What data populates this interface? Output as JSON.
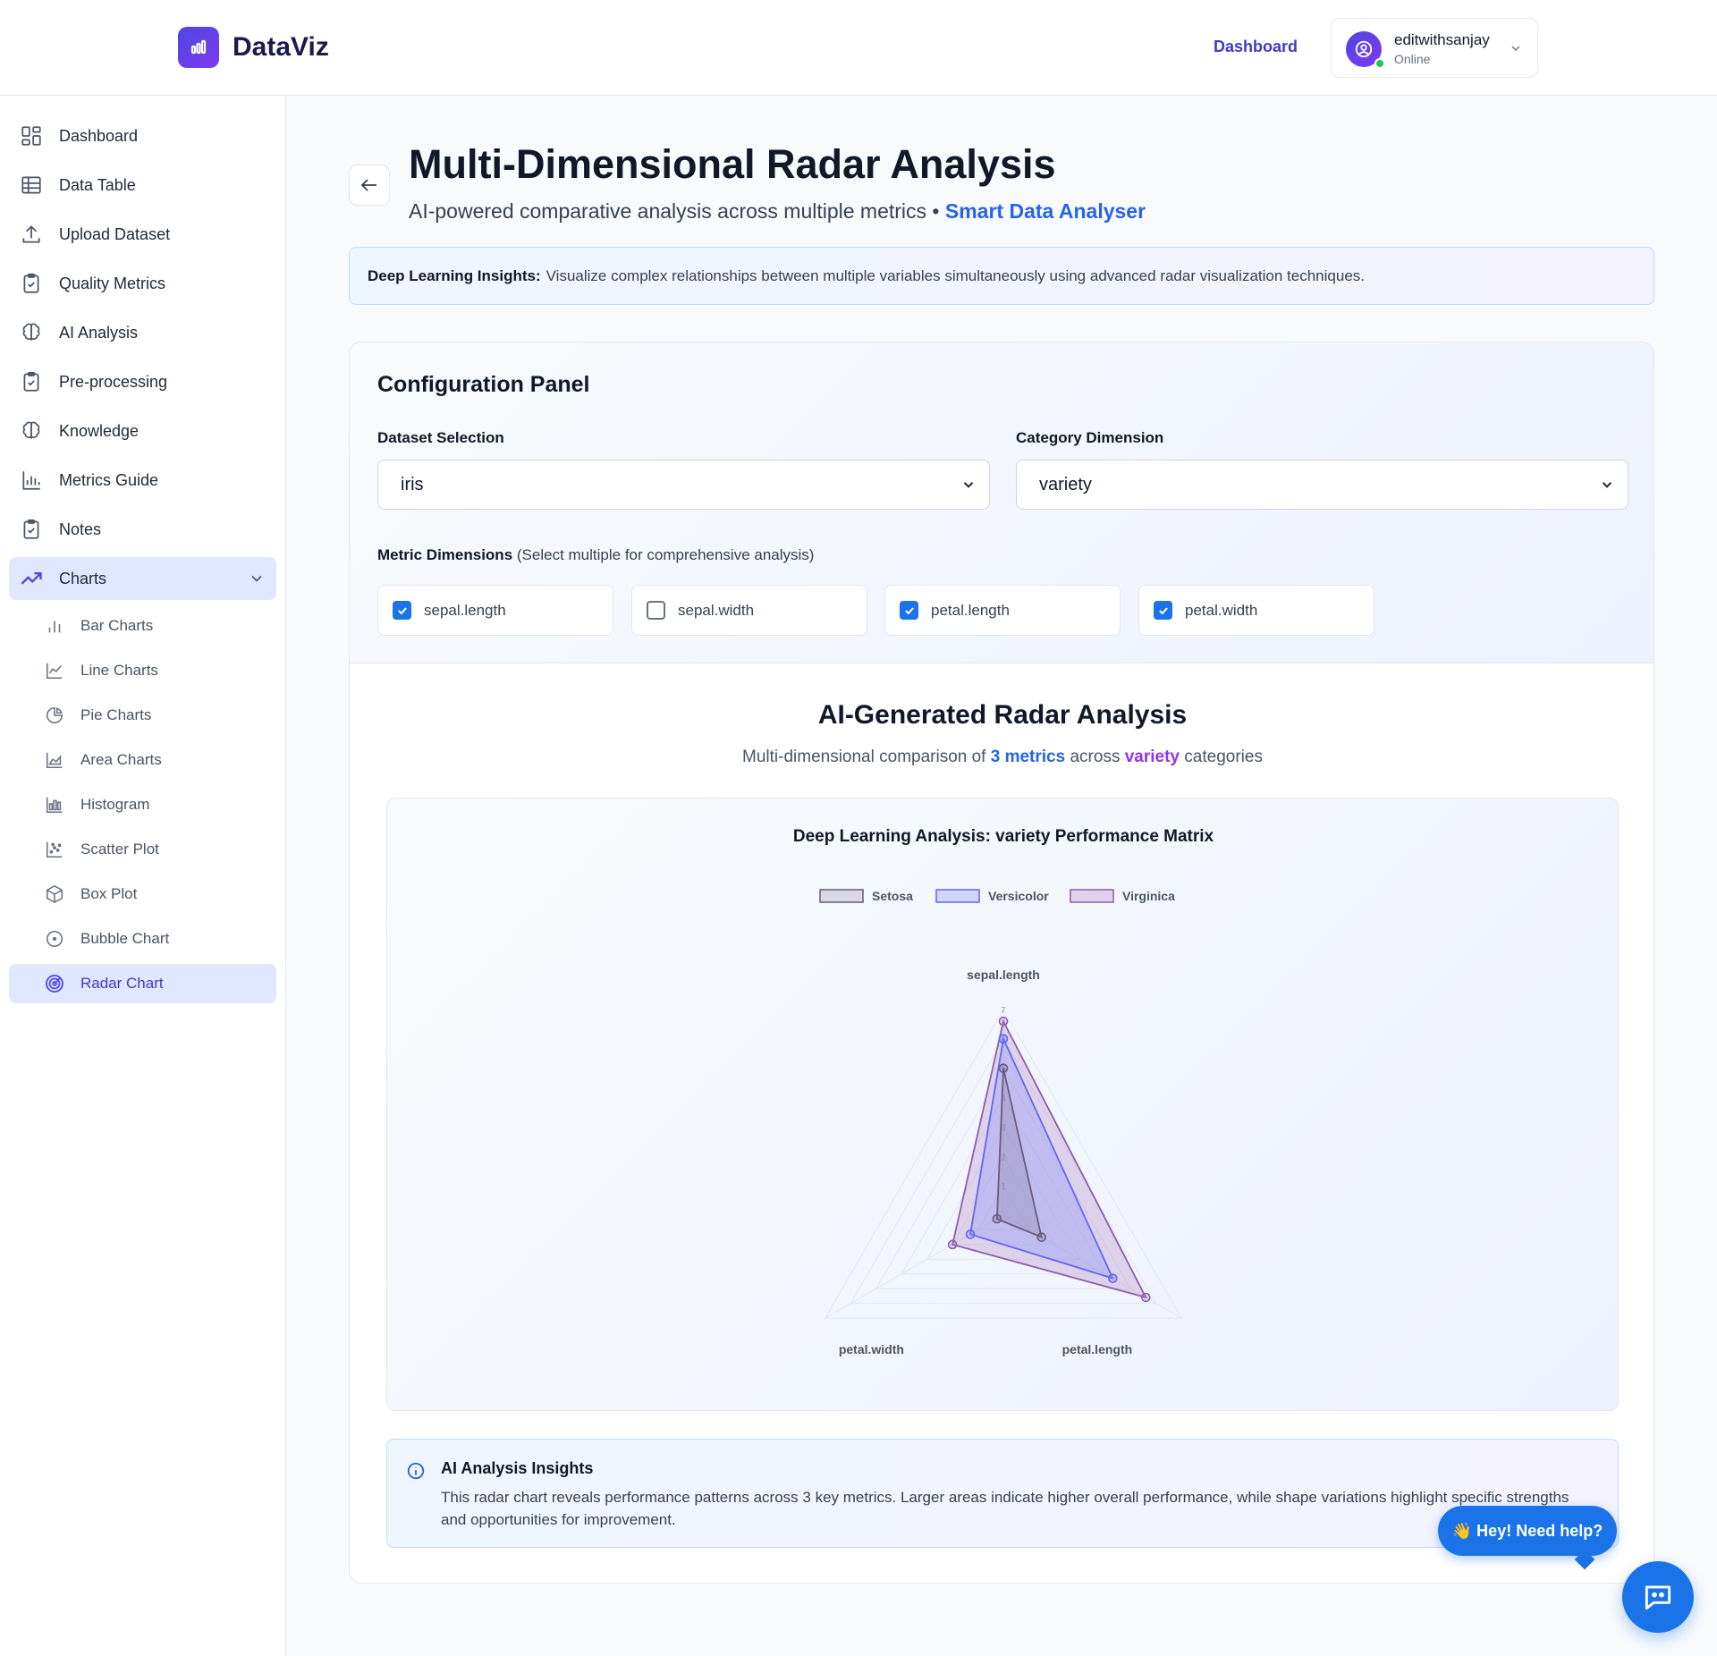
{
  "app": {
    "name": "DataViz",
    "brand_color": "#4f46e5"
  },
  "header": {
    "nav_dashboard": "Dashboard",
    "user": {
      "name": "editwithsanjay",
      "status": "Online"
    }
  },
  "sidebar": {
    "items": [
      {
        "label": "Dashboard",
        "icon": "grid-icon"
      },
      {
        "label": "Data Table",
        "icon": "table-icon"
      },
      {
        "label": "Upload Dataset",
        "icon": "upload-icon"
      },
      {
        "label": "Quality Metrics",
        "icon": "clipboard-icon"
      },
      {
        "label": "AI Analysis",
        "icon": "brain-icon"
      },
      {
        "label": "Pre-processing",
        "icon": "clipboard-icon"
      },
      {
        "label": "Knowledge",
        "icon": "brain-icon"
      },
      {
        "label": "Metrics Guide",
        "icon": "bar-chart-icon"
      },
      {
        "label": "Notes",
        "icon": "clipboard-icon"
      },
      {
        "label": "Charts",
        "icon": "trending-icon",
        "expanded": true
      }
    ],
    "chart_items": [
      {
        "label": "Bar Charts",
        "icon": "bar-chart-icon"
      },
      {
        "label": "Line Charts",
        "icon": "line-chart-icon"
      },
      {
        "label": "Pie Charts",
        "icon": "pie-chart-icon"
      },
      {
        "label": "Area Charts",
        "icon": "area-chart-icon"
      },
      {
        "label": "Histogram",
        "icon": "histogram-icon"
      },
      {
        "label": "Scatter Plot",
        "icon": "scatter-icon"
      },
      {
        "label": "Box Plot",
        "icon": "box-icon"
      },
      {
        "label": "Bubble Chart",
        "icon": "bubble-icon"
      },
      {
        "label": "Radar Chart",
        "icon": "radar-icon",
        "active": true
      }
    ]
  },
  "page": {
    "title": "Multi-Dimensional Radar Analysis",
    "subtitle": "AI-powered comparative analysis across multiple metrics •",
    "subtitle_brand": "Smart Data Analyser",
    "notice_bold": "Deep Learning Insights:",
    "notice_text": "Visualize complex relationships between multiple variables simultaneously using advanced radar visualization techniques."
  },
  "config": {
    "title": "Configuration Panel",
    "dataset_label": "Dataset Selection",
    "dataset_value": "iris",
    "category_label": "Category Dimension",
    "category_value": "variety",
    "metrics_label_bold": "Metric Dimensions",
    "metrics_label_rest": "(Select multiple for comprehensive analysis)",
    "metrics": [
      {
        "label": "sepal.length",
        "checked": true
      },
      {
        "label": "sepal.width",
        "checked": false
      },
      {
        "label": "petal.length",
        "checked": true
      },
      {
        "label": "petal.width",
        "checked": true
      }
    ]
  },
  "results": {
    "title": "AI-Generated Radar Analysis",
    "sub_pre": "Multi-dimensional comparison of",
    "sub_metrics": "3 metrics",
    "sub_mid": "across",
    "sub_category": "variety",
    "sub_post": "categories"
  },
  "chart_data": {
    "type": "radar",
    "title": "Deep Learning Analysis: variety Performance Matrix",
    "axes": [
      "sepal.length",
      "petal.length",
      "petal.width"
    ],
    "rmax": 7,
    "ticks": [
      1,
      2,
      3,
      4,
      5,
      6,
      7
    ],
    "grid": true,
    "legend_position": "top-center",
    "series": [
      {
        "name": "Setosa",
        "values": [
          5.0,
          1.5,
          0.25
        ],
        "stroke": "#6b5b7b",
        "fill": "rgba(120,110,140,0.22)"
      },
      {
        "name": "Versicolor",
        "values": [
          6.0,
          4.3,
          1.3
        ],
        "stroke": "#6366f1",
        "fill": "rgba(129,140,248,0.30)"
      },
      {
        "name": "Virginica",
        "values": [
          6.6,
          5.6,
          2.0
        ],
        "stroke": "#8b5fa8",
        "fill": "rgba(168,120,190,0.28)"
      }
    ]
  },
  "insights": {
    "title": "AI Analysis Insights",
    "text": "This radar chart reveals performance patterns across 3 key metrics. Larger areas indicate higher overall performance, while shape variations highlight specific strengths and opportunities for improvement."
  },
  "help": {
    "bubble": "👋 Hey! Need help?"
  }
}
